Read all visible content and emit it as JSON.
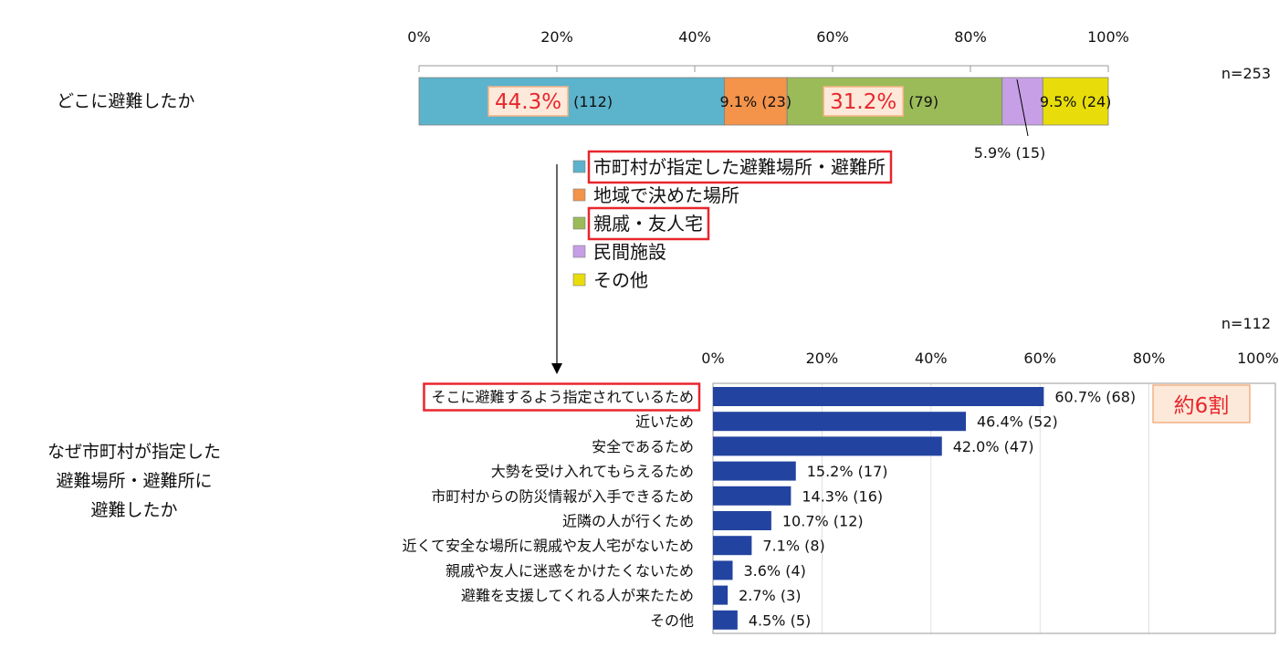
{
  "chart_data": [
    {
      "type": "bar",
      "orientation": "horizontal",
      "stacked": true,
      "question": "どこに避難したか",
      "n_label": "n=253",
      "xlim": [
        0,
        100
      ],
      "x_ticks": [
        "0%",
        "20%",
        "40%",
        "60%",
        "80%",
        "100%"
      ],
      "series": [
        {
          "name": "市町村が指定した避難場所・避難所",
          "value": 44.3,
          "count": 112,
          "pct_label": "44.3%",
          "count_label": "(112)",
          "color": "#5cb3cc",
          "highlight": true
        },
        {
          "name": "地域で決めた場所",
          "value": 9.1,
          "count": 23,
          "label": "9.1% (23)",
          "color": "#f4934a",
          "highlight": false
        },
        {
          "name": "親戚・友人宅",
          "value": 31.2,
          "count": 79,
          "pct_label": "31.2%",
          "count_label": "(79)",
          "color": "#9bbb59",
          "highlight": true
        },
        {
          "name": "民間施設",
          "value": 5.9,
          "count": 15,
          "label": "5.9% (15)",
          "color": "#c79fe6",
          "highlight": false
        },
        {
          "name": "その他",
          "value": 9.5,
          "count": 24,
          "label": "9.5% (24)",
          "color": "#e8dd0a",
          "highlight": false
        }
      ],
      "legend_position": "below"
    },
    {
      "type": "bar",
      "orientation": "horizontal",
      "question_lines": [
        "なぜ市町村が指定した",
        "避難場所・避難所に",
        "避難したか"
      ],
      "n_label": "n=112",
      "xlim": [
        0,
        100
      ],
      "x_ticks": [
        "0%",
        "20%",
        "40%",
        "60%",
        "80%",
        "100%"
      ],
      "bar_color": "#2343a0",
      "highlight_category_index": 0,
      "callout": "約6割",
      "categories": [
        "そこに避難するよう指定されているため",
        "近いため",
        "安全であるため",
        "大勢を受け入れてもらえるため",
        "市町村からの防災情報が入手できるため",
        "近隣の人が行くため",
        "近くて安全な場所に親戚や友人宅がないため",
        "親戚や友人に迷惑をかけたくないため",
        "避難を支援してくれる人が来たため",
        "その他"
      ],
      "values": [
        60.7,
        46.4,
        42.0,
        15.2,
        14.3,
        10.7,
        7.1,
        3.6,
        2.7,
        4.5
      ],
      "counts": [
        68,
        52,
        47,
        17,
        16,
        12,
        8,
        4,
        3,
        5
      ],
      "labels": [
        "60.7% (68)",
        "46.4% (52)",
        "42.0% (47)",
        "15.2% (17)",
        "14.3% (16)",
        "10.7% (12)",
        "7.1% (8)",
        "3.6% (4)",
        "2.7% (3)",
        "4.5% (5)"
      ]
    }
  ]
}
